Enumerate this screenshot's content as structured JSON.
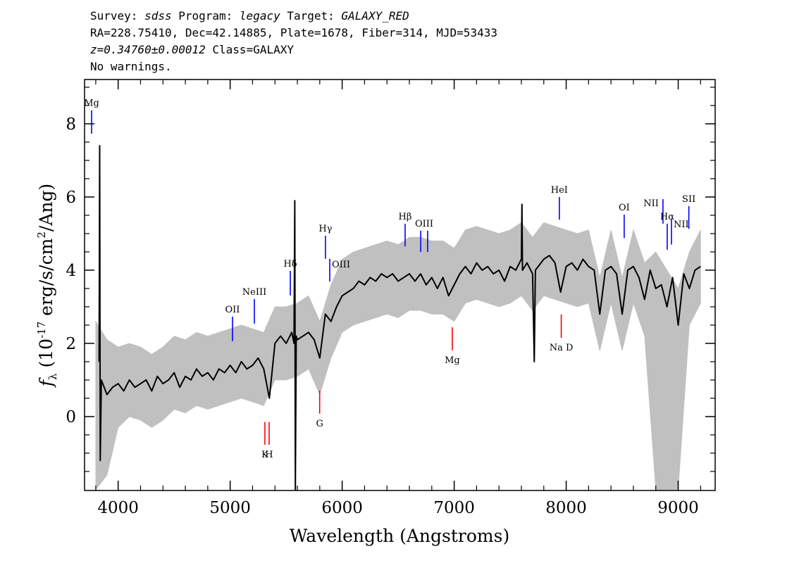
{
  "chart_data": {
    "type": "line",
    "header": [
      [
        {
          "text": "Survey: "
        },
        {
          "text": "sdss",
          "italic": true
        },
        {
          "text": " Program: "
        },
        {
          "text": "legacy",
          "italic": true
        },
        {
          "text": " Target: "
        },
        {
          "text": "GALAXY_RED",
          "italic": true
        }
      ],
      [
        {
          "text": "RA=228.75410, Dec=42.14885, Plate=1678, Fiber=314, MJD=53433"
        }
      ],
      [
        {
          "text": "z=0.34760±0.00012",
          "italic": true
        },
        {
          "text": " Class=GALAXY"
        }
      ],
      [
        {
          "text": "No warnings."
        }
      ]
    ],
    "xlabel": "Wavelength (Angstroms)",
    "ylabel": [
      {
        "text": "f",
        "italic": true
      },
      {
        "text": "λ",
        "shift": "sub"
      },
      {
        "text": " (10"
      },
      {
        "text": "-17",
        "shift": "sup"
      },
      {
        "text": " erg/s/cm"
      },
      {
        "text": "2",
        "shift": "sup"
      },
      {
        "text": "/Ang)"
      }
    ],
    "xlim": [
      3700,
      9330
    ],
    "ylim": [
      -2.02,
      9.21
    ],
    "xticks": [
      4000,
      5000,
      6000,
      7000,
      8000,
      9000
    ],
    "yticks": [
      0,
      2,
      4,
      6,
      8
    ],
    "xminorticks": [
      3800,
      4200,
      4400,
      4600,
      4800,
      5200,
      5400,
      5600,
      5800,
      6200,
      6400,
      6600,
      6800,
      7200,
      7400,
      7600,
      7800,
      8200,
      8400,
      8600,
      8800,
      9200
    ],
    "yminorticks": [
      -1.5,
      -1,
      -0.5,
      0.5,
      1,
      1.5,
      2.5,
      3,
      3.5,
      4.5,
      5,
      5.5,
      6.5,
      7,
      7.5,
      8.5,
      9
    ],
    "band": {
      "color": "#c0c0c0",
      "x": [
        3800,
        3900,
        4000,
        4100,
        4200,
        4300,
        4400,
        4500,
        4600,
        4700,
        4800,
        4900,
        5000,
        5100,
        5200,
        5300,
        5400,
        5500,
        5600,
        5700,
        5800,
        5900,
        6000,
        6100,
        6200,
        6300,
        6400,
        6500,
        6600,
        6700,
        6800,
        6900,
        7000,
        7100,
        7200,
        7300,
        7400,
        7500,
        7600,
        7700,
        7800,
        7900,
        8000,
        8100,
        8200,
        8300,
        8400,
        8500,
        8600,
        8700,
        8800,
        8900,
        9000,
        9100,
        9200
      ],
      "lower": [
        -2.0,
        -1.6,
        -0.3,
        0,
        -0.1,
        -0.3,
        -0.1,
        0.2,
        0.1,
        0.3,
        0.2,
        0.3,
        0.4,
        0.5,
        0.4,
        0.3,
        1.0,
        1.0,
        1.1,
        1.3,
        0.6,
        1.6,
        2.3,
        2.5,
        2.6,
        2.7,
        2.8,
        2.7,
        2.9,
        2.9,
        2.8,
        2.8,
        2.6,
        3.1,
        3.2,
        3.1,
        3.0,
        3.1,
        3.3,
        2.9,
        3.3,
        3.2,
        3.1,
        3.0,
        3.1,
        1.8,
        3.1,
        1.8,
        3.1,
        2.2,
        -2.0,
        -2.0,
        -2.0,
        2.5,
        3.1
      ],
      "upper": [
        2.6,
        2.1,
        1.9,
        2.0,
        1.9,
        1.7,
        1.9,
        2.2,
        2.1,
        2.3,
        2.2,
        2.3,
        2.4,
        2.5,
        2.4,
        2.3,
        3.0,
        3.0,
        3.1,
        3.3,
        2.6,
        3.6,
        4.3,
        4.5,
        4.6,
        4.7,
        4.8,
        4.7,
        4.9,
        4.9,
        4.8,
        4.8,
        4.6,
        5.1,
        5.2,
        5.1,
        5.0,
        5.1,
        5.3,
        4.9,
        5.3,
        5.2,
        5.1,
        5.0,
        5.1,
        3.8,
        5.1,
        3.8,
        5.1,
        4.2,
        4.5,
        4.0,
        3.5,
        4.5,
        5.1
      ]
    },
    "series": [
      {
        "color": "#000000",
        "x": [
          3830,
          3835,
          3840,
          3850,
          3900,
          3950,
          4000,
          4050,
          4100,
          4150,
          4200,
          4250,
          4300,
          4350,
          4400,
          4450,
          4500,
          4550,
          4600,
          4650,
          4700,
          4750,
          4800,
          4850,
          4900,
          4950,
          5000,
          5050,
          5100,
          5150,
          5200,
          5250,
          5300,
          5350,
          5400,
          5450,
          5500,
          5550,
          5570,
          5577,
          5582,
          5590,
          5600,
          5650,
          5700,
          5750,
          5800,
          5850,
          5900,
          5950,
          6000,
          6050,
          6100,
          6150,
          6200,
          6250,
          6300,
          6350,
          6400,
          6450,
          6500,
          6550,
          6600,
          6650,
          6700,
          6750,
          6800,
          6850,
          6900,
          6950,
          7000,
          7050,
          7100,
          7150,
          7200,
          7250,
          7300,
          7350,
          7400,
          7450,
          7500,
          7550,
          7600,
          7605,
          7610,
          7650,
          7700,
          7715,
          7725,
          7750,
          7800,
          7850,
          7900,
          7950,
          8000,
          8050,
          8100,
          8150,
          8200,
          8250,
          8300,
          8350,
          8400,
          8450,
          8500,
          8550,
          8600,
          8650,
          8700,
          8750,
          8800,
          8850,
          8900,
          8950,
          9000,
          9050,
          9100,
          9150,
          9200
        ],
        "values": [
          1.5,
          7.4,
          -1.2,
          1.0,
          0.6,
          0.8,
          0.9,
          0.7,
          1.0,
          0.8,
          0.9,
          1.0,
          0.7,
          1.1,
          0.9,
          1.0,
          1.2,
          0.8,
          1.1,
          1.0,
          1.3,
          1.1,
          1.2,
          1.0,
          1.3,
          1.2,
          1.4,
          1.2,
          1.5,
          1.3,
          1.4,
          1.6,
          1.3,
          0.5,
          2.0,
          2.2,
          2.0,
          2.3,
          2.0,
          5.9,
          -2.0,
          2.2,
          2.1,
          2.2,
          2.3,
          2.1,
          1.6,
          2.8,
          2.6,
          3.0,
          3.3,
          3.4,
          3.5,
          3.7,
          3.6,
          3.8,
          3.7,
          3.9,
          3.8,
          3.9,
          3.7,
          3.8,
          3.9,
          3.7,
          3.9,
          3.6,
          3.8,
          3.5,
          3.8,
          3.3,
          3.6,
          3.9,
          4.1,
          3.9,
          4.2,
          4.0,
          4.1,
          3.9,
          4.0,
          3.7,
          4.1,
          4.0,
          4.3,
          5.8,
          4.0,
          4.2,
          3.9,
          1.5,
          4.0,
          4.1,
          4.3,
          4.4,
          4.2,
          3.4,
          4.1,
          4.2,
          4.0,
          4.3,
          4.1,
          4.0,
          2.8,
          4.0,
          4.1,
          3.9,
          2.8,
          4.0,
          4.1,
          3.8,
          3.2,
          4.0,
          3.5,
          3.6,
          3.0,
          3.8,
          2.5,
          3.9,
          3.5,
          4.0,
          4.1
        ]
      }
    ],
    "annotations": [
      {
        "text": "Mg",
        "x": [
          3763
        ],
        "y": [
          8.37,
          7.73
        ],
        "color": "#0000ff",
        "anchor": "above"
      },
      {
        "text": "OII",
        "x": [
          5021
        ],
        "y": [
          2.73,
          2.06
        ],
        "color": "#0000ff",
        "anchor": "above"
      },
      {
        "text": "NeIII",
        "x": [
          5216
        ],
        "y": [
          3.21,
          2.54
        ],
        "color": "#0000ff",
        "anchor": "above"
      },
      {
        "text": "Hδ",
        "x": [
          5537
        ],
        "y": [
          3.98,
          3.31
        ],
        "color": "#0000ff",
        "anchor": "above"
      },
      {
        "text": "Hγ",
        "x": [
          5851
        ],
        "y": [
          4.94,
          4.31
        ],
        "color": "#0000ff",
        "anchor": "above"
      },
      {
        "text": "OIII",
        "x": [
          5889
        ],
        "y": [
          4.31,
          3.69
        ],
        "color": "#0000ff",
        "anchor": "right"
      },
      {
        "text": "Hβ",
        "x": [
          6562
        ],
        "y": [
          5.27,
          4.65
        ],
        "color": "#0000ff",
        "anchor": "above"
      },
      {
        "text": "OIII",
        "x": [
          6701,
          6763
        ],
        "y": [
          5.08,
          4.5
        ],
        "color": "#0000ff",
        "anchor": "above"
      },
      {
        "text": "HeI",
        "x": [
          7939
        ],
        "y": [
          6.0,
          5.38
        ],
        "color": "#0000ff",
        "anchor": "above"
      },
      {
        "text": "OI",
        "x": [
          8518
        ],
        "y": [
          5.52,
          4.88
        ],
        "color": "#0000ff",
        "anchor": "above"
      },
      {
        "text": "NII",
        "x": [
          8864
        ],
        "y": [
          5.94,
          5.27
        ],
        "color": "#0000ff",
        "anchor": "left"
      },
      {
        "text": "Hα",
        "x": [
          8902
        ],
        "y": [
          5.27,
          4.56
        ],
        "color": "#0000ff",
        "anchor": "above"
      },
      {
        "text": "NII",
        "x": [
          8940
        ],
        "y": [
          5.4,
          4.7
        ],
        "color": "#0000ff",
        "anchor": "right"
      },
      {
        "text": "SII",
        "x": [
          9095
        ],
        "y": [
          5.75,
          5.13
        ],
        "color": "#0000ff",
        "anchor": "above"
      },
      {
        "text": "K",
        "x": [
          5310
        ],
        "y": [
          -0.15,
          -0.77
        ],
        "color": "#ff0000",
        "anchor": "below"
      },
      {
        "text": "H",
        "x": [
          5348
        ],
        "y": [
          -0.15,
          -0.77
        ],
        "color": "#ff0000",
        "anchor": "below"
      },
      {
        "text": "G",
        "x": [
          5799
        ],
        "y": [
          0.71,
          0.08
        ],
        "color": "#ff0000",
        "anchor": "below"
      },
      {
        "text": "Mg",
        "x": [
          6983
        ],
        "y": [
          2.44,
          1.81
        ],
        "color": "#ff0000",
        "anchor": "below"
      },
      {
        "text": "Na D",
        "x": [
          7956
        ],
        "y": [
          2.79,
          2.15
        ],
        "color": "#ff0000",
        "anchor": "below"
      }
    ]
  }
}
